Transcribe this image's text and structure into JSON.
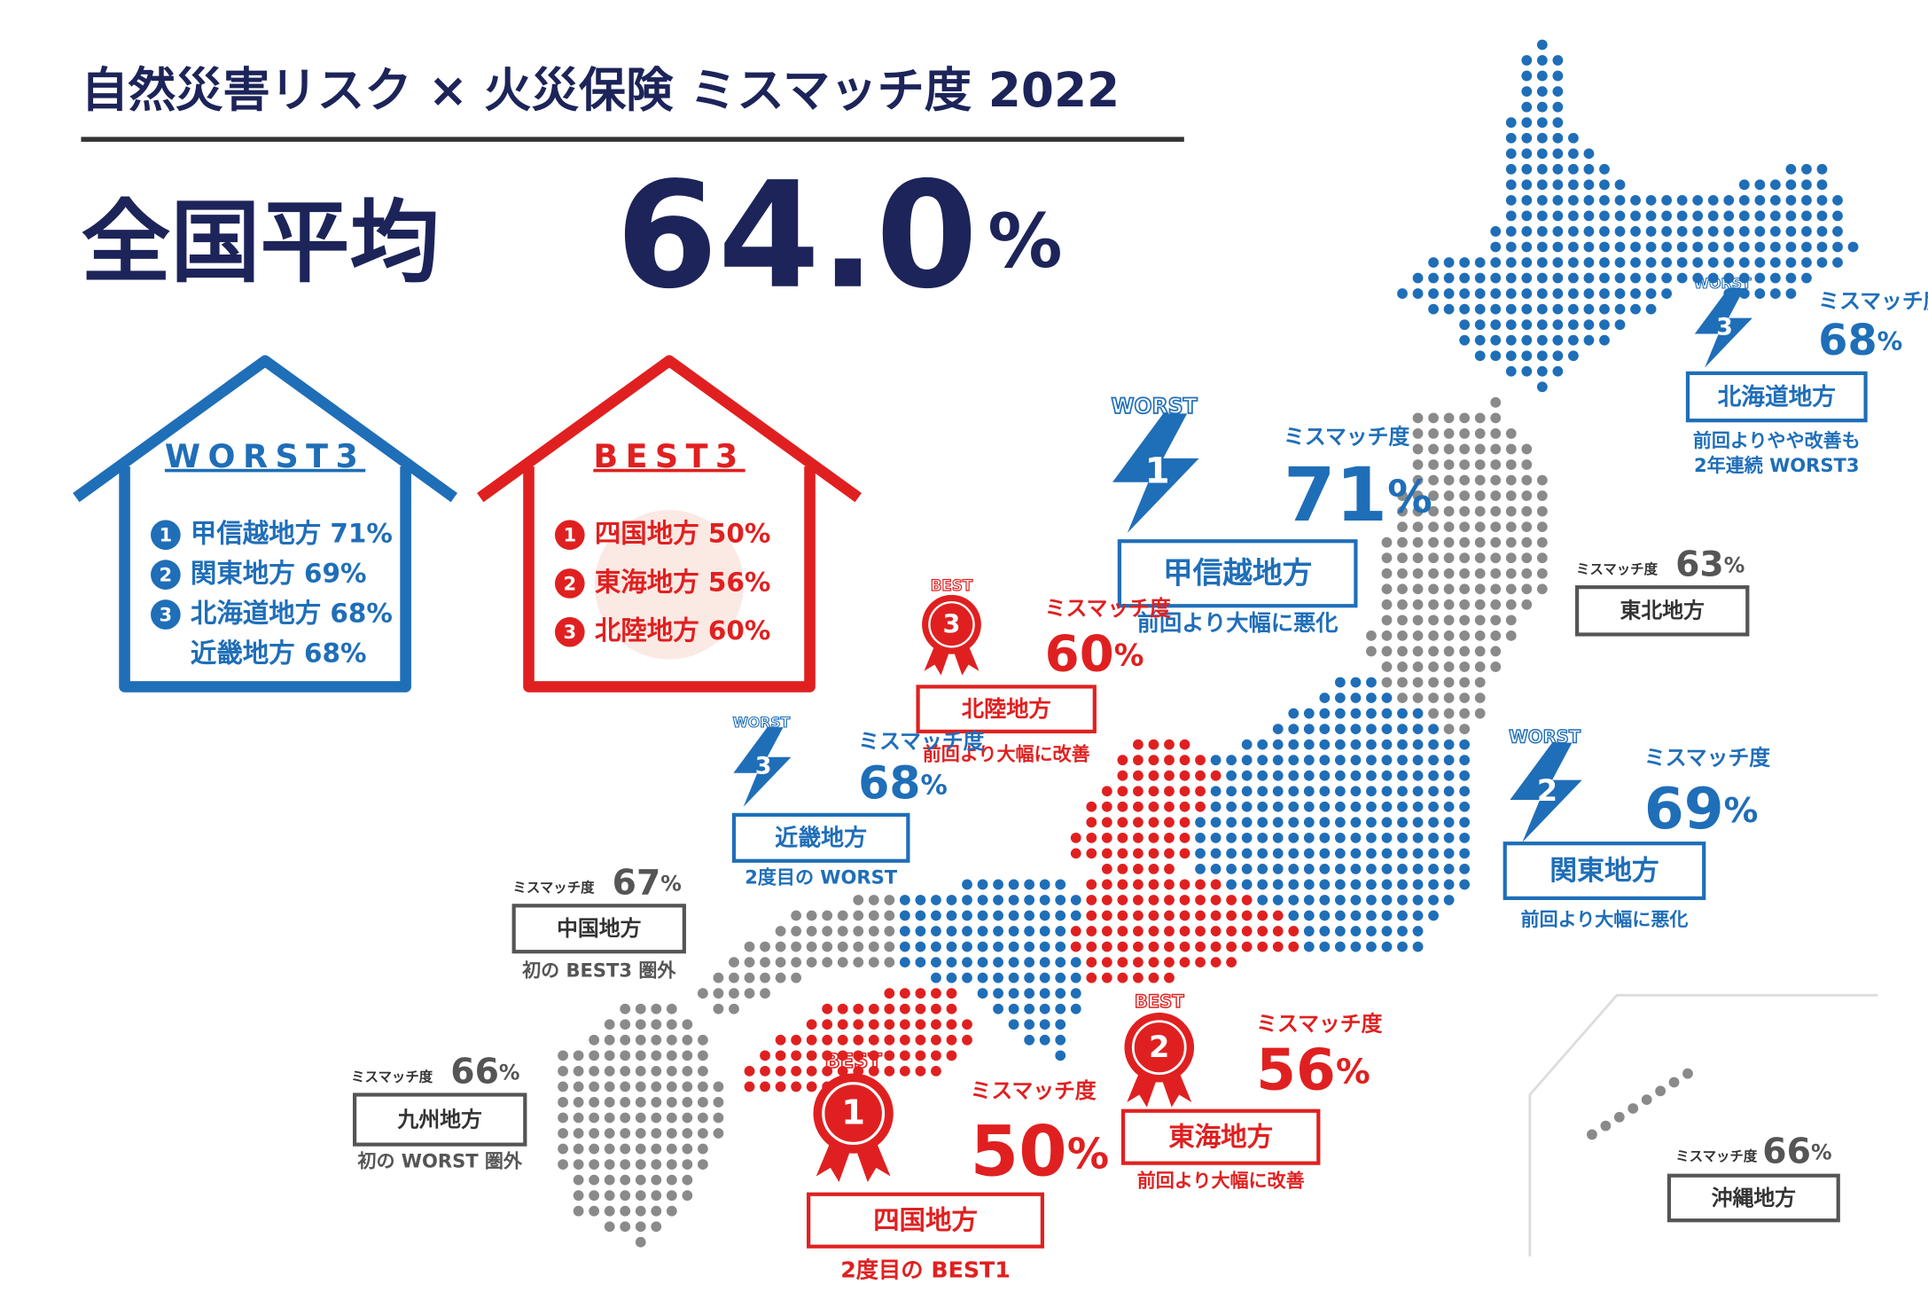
{
  "header": {
    "title": "自然災害リスク × 火災保険 ミスマッチ度 2022",
    "average_label": "全国平均",
    "average_value": "64.0",
    "average_unit": "%"
  },
  "worst3": {
    "title": "WORST3",
    "items": [
      {
        "rank": "1",
        "lines": [
          "甲信越地方 71%"
        ]
      },
      {
        "rank": "2",
        "lines": [
          "関東地方 69%"
        ]
      },
      {
        "rank": "3",
        "lines": [
          "北海道地方 68%",
          "近畿地方 68%"
        ]
      }
    ]
  },
  "best3": {
    "title": "BEST3",
    "items": [
      {
        "rank": "1",
        "lines": [
          "四国地方 50%"
        ]
      },
      {
        "rank": "2",
        "lines": [
          "東海地方 56%"
        ]
      },
      {
        "rank": "3",
        "lines": [
          "北陸地方 60%"
        ]
      }
    ]
  },
  "regions": [
    {
      "name": "北海道地方",
      "badge": "WORST",
      "rank": "3",
      "label": "ミスマッチ度",
      "value": "68",
      "unit": "%",
      "color": "#1f6eb8",
      "note": [
        "前回よりやや改善も",
        "2年連続 WORST3"
      ]
    },
    {
      "name": "甲信越地方",
      "badge": "WORST",
      "rank": "1",
      "label": "ミスマッチ度",
      "value": "71",
      "unit": "%",
      "color": "#1f6eb8",
      "note": [
        "前回より大幅に悪化"
      ]
    },
    {
      "name": "東北地方",
      "label": "ミスマッチ度",
      "value": "63",
      "unit": "%",
      "color": "#555555",
      "note": []
    },
    {
      "name": "北陸地方",
      "badge": "BEST",
      "rank": "3",
      "label": "ミスマッチ度",
      "value": "60",
      "unit": "%",
      "color": "#e02020",
      "note": [
        "前回より大幅に改善"
      ]
    },
    {
      "name": "近畿地方",
      "badge": "WORST",
      "rank": "3",
      "label": "ミスマッチ度",
      "value": "68",
      "unit": "%",
      "color": "#1f6eb8",
      "note": [
        "2度目の WORST"
      ]
    },
    {
      "name": "関東地方",
      "badge": "WORST",
      "rank": "2",
      "label": "ミスマッチ度",
      "value": "69",
      "unit": "%",
      "color": "#1f6eb8",
      "note": [
        "前回より大幅に悪化"
      ]
    },
    {
      "name": "中国地方",
      "label": "ミスマッチ度",
      "value": "67",
      "unit": "%",
      "color": "#555555",
      "note": [
        "初の BEST3 圏外"
      ]
    },
    {
      "name": "九州地方",
      "label": "ミスマッチ度",
      "value": "66",
      "unit": "%",
      "color": "#555555",
      "note": [
        "初の WORST 圏外"
      ]
    },
    {
      "name": "四国地方",
      "badge": "BEST",
      "rank": "1",
      "label": "ミスマッチ度",
      "value": "50",
      "unit": "%",
      "color": "#e02020",
      "note": [
        "2度目の BEST1"
      ]
    },
    {
      "name": "東海地方",
      "badge": "BEST",
      "rank": "2",
      "label": "ミスマッチ度",
      "value": "56",
      "unit": "%",
      "color": "#e02020",
      "note": [
        "前回より大幅に改善"
      ]
    },
    {
      "name": "沖縄地方",
      "label": "ミスマッチ度",
      "value": "66",
      "unit": "%",
      "color": "#555555",
      "note": []
    }
  ]
}
